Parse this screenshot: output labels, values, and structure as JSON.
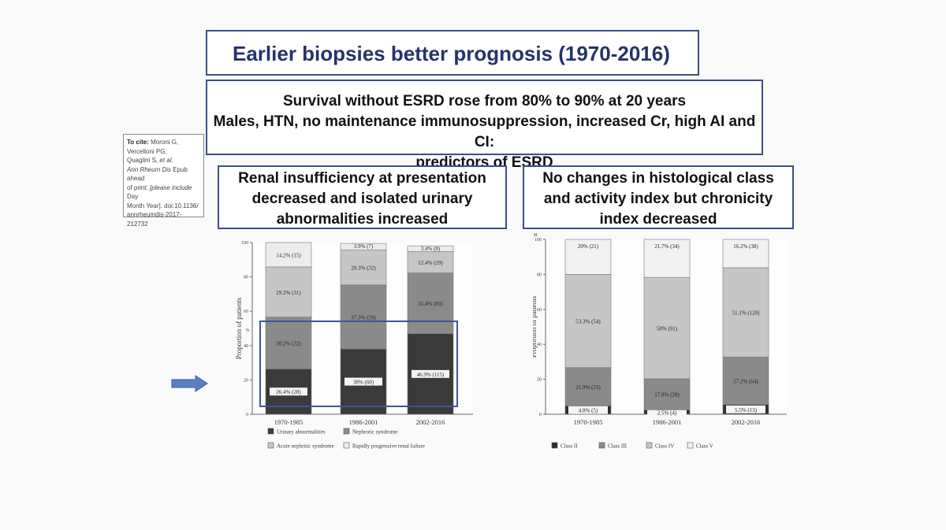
{
  "title": "Earlier biopsies better prognosis (1970-2016)",
  "summary": {
    "line1": "Survival without ESRD rose from  80% to 90% at 20 years",
    "line2": "Males, HTN, no maintenance immunosuppression, increased Cr, high AI and CI:",
    "line3": "predictors of ESRD"
  },
  "citation": {
    "label": "To cite:",
    "authors1": "Moroni G,",
    "authors2": "Vercelloni PG,",
    "authors3": "Quaglini S,",
    "etal": "et al.",
    "journal": "Ann Rheum Dis",
    "text1": "Epub ahead",
    "text2": "of print:",
    "text3": "[please include",
    "text4": "Day",
    "text5": "Month Year]. doi:10.1136/",
    "text6": "annrheumdis-2017-212732"
  },
  "renal_header": {
    "line1": "Renal insufficiency at presentation",
    "line2": "decreased and isolated urinary",
    "line3": "abnormalities increased"
  },
  "hist_header": {
    "line1": "No changes in histological class",
    "line2": "and activity index but  chronicity",
    "line3": "index decreased"
  },
  "chart_data": [
    {
      "type": "bar",
      "stacked": true,
      "ylabel": "Proportion of patients",
      "ylabel_sub": "%",
      "ylim": [
        0,
        100
      ],
      "yticks": [
        "0",
        "20",
        "40",
        "60",
        "80",
        "100"
      ],
      "categories": [
        "1970-1985",
        "1986-2001",
        "2002-2016"
      ],
      "series": [
        {
          "name": "Urinary abnormalities",
          "color": "#3a3a3a",
          "values": [
            26.4,
            38,
            46.9
          ],
          "labels": [
            "26.4% (28)",
            "38% (60)",
            "46.9% (115)"
          ]
        },
        {
          "name": "Nephrotic syndrome",
          "color": "#8a8a8a",
          "values": [
            30.2,
            37.3,
            35.4
          ],
          "labels": [
            "30.2% (32)",
            "37.3% (59)",
            "35.4% (83)"
          ]
        },
        {
          "name": "Acute nephritic syndrome",
          "color": "#c6c6c6",
          "values": [
            29.2,
            20.3,
            12.4
          ],
          "labels": [
            "29.2% (31)",
            "20.3% (32)",
            "12.4% (29)"
          ]
        },
        {
          "name": "Rapidly progressive renal failure",
          "color": "#ececec",
          "values": [
            14.2,
            3.9,
            3.4
          ],
          "labels": [
            "14.2% (15)",
            "3.9% (7)",
            "3.4% (8)"
          ]
        }
      ],
      "legend_position": "bottom"
    },
    {
      "type": "bar",
      "stacked": true,
      "panel_label": "B",
      "ylabel": "Proportion of patients",
      "ylim": [
        0,
        100
      ],
      "yticks": [
        "0",
        "20",
        "40",
        "60",
        "80",
        "100"
      ],
      "categories": [
        "1970-1985",
        "1986-2001",
        "2002-2016"
      ],
      "series": [
        {
          "name": "Class II",
          "color": "#2e2e2e",
          "values": [
            4.8,
            2.5,
            5.5
          ],
          "labels": [
            "4.8% (5)",
            "2.5% (4)",
            "5.5% (13)"
          ]
        },
        {
          "name": "Class III",
          "color": "#8a8a8a",
          "values": [
            21.9,
            17.8,
            27.2
          ],
          "labels": [
            "21.9% (23)",
            "17.8% (28)",
            "27.2% (64)"
          ]
        },
        {
          "name": "Class IV",
          "color": "#c6c6c6",
          "values": [
            53.3,
            58,
            51.1
          ],
          "labels": [
            "53.3% (54)",
            "58% (91)",
            "51.1% (120)"
          ]
        },
        {
          "name": "Class V",
          "color": "#f2f2f2",
          "values": [
            20,
            21.7,
            16.2
          ],
          "labels": [
            "20% (21)",
            "21.7% (34)",
            "16.2% (38)"
          ]
        }
      ],
      "legend_position": "bottom"
    }
  ]
}
